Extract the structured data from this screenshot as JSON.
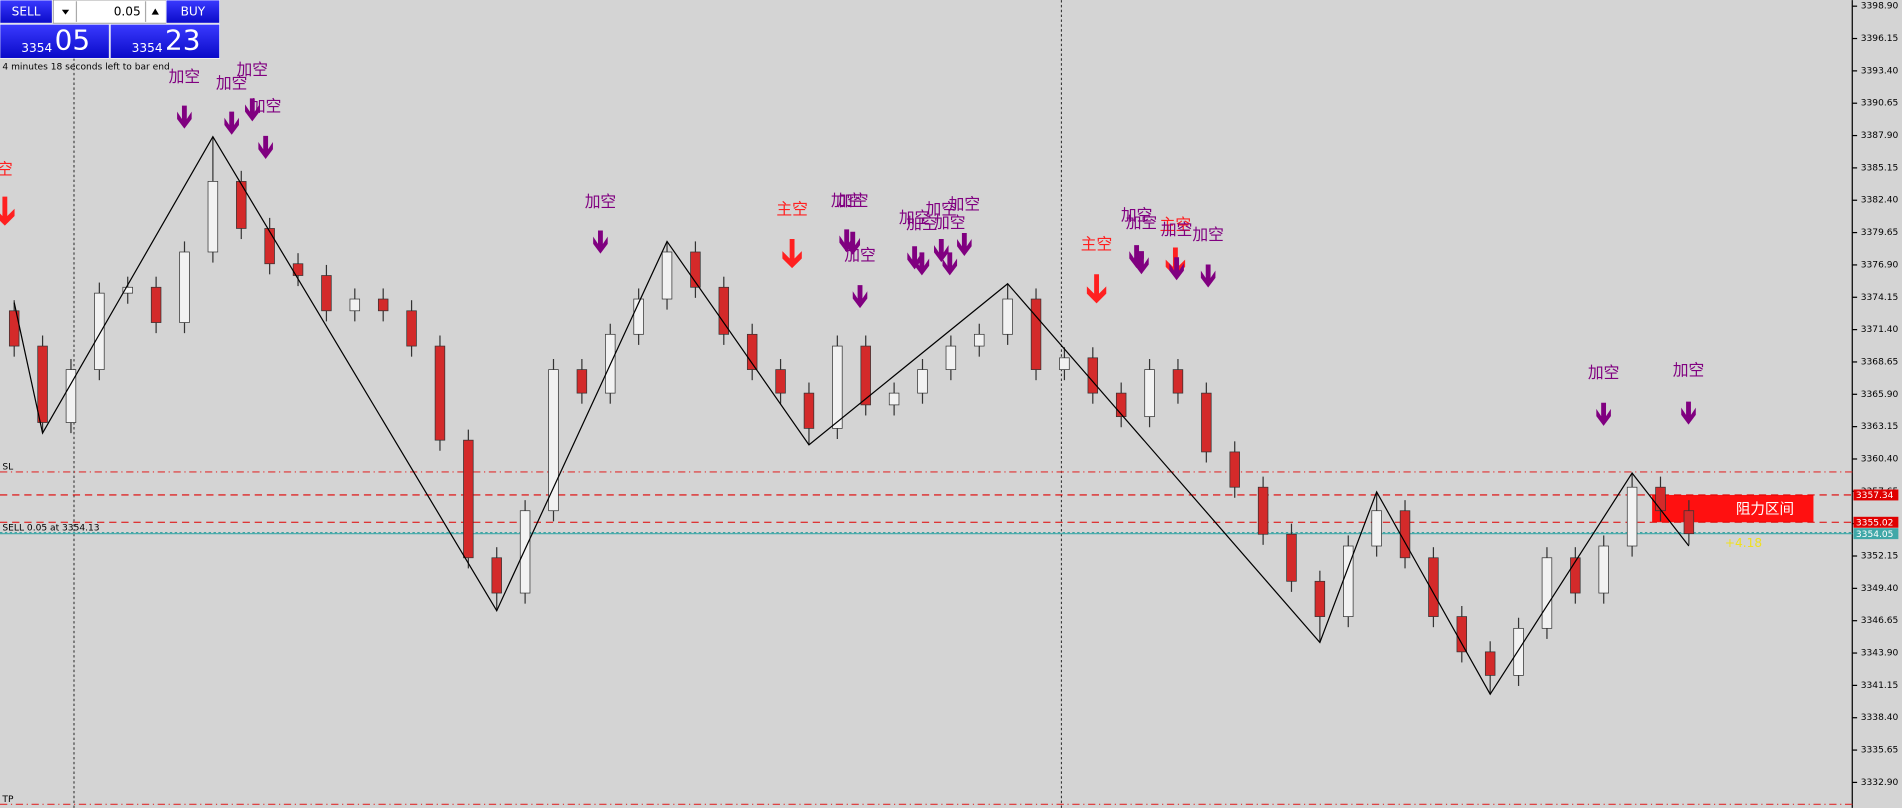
{
  "chart_data": {
    "type": "candlestick",
    "up_color": "#f2f2f2",
    "down_color": "#d42a2a",
    "wick_color": "#333333",
    "open": [
      3373,
      3370,
      3363.5,
      3368,
      3374.5,
      3375,
      3372,
      3378,
      3384,
      3380,
      3377,
      3376,
      3373,
      3374,
      3373,
      3370,
      3362,
      3352,
      3349,
      3356,
      3368,
      3366,
      3371,
      3374,
      3378,
      3375,
      3371,
      3368,
      3366,
      3363,
      3370,
      3365,
      3366,
      3368,
      3370,
      3371,
      3374,
      3368,
      3369,
      3366,
      3364,
      3368,
      3366,
      3361,
      3358,
      3354,
      3350,
      3347,
      3353,
      3356,
      3352,
      3347,
      3344,
      3342,
      3346,
      3352,
      3349,
      3353,
      3358,
      3356
    ],
    "high": [
      3373.9,
      3370.9,
      3368.9,
      3375.4,
      3375.9,
      3375.9,
      3378.9,
      3387.8,
      3384.9,
      3380.9,
      3377.9,
      3376.9,
      3374.9,
      3374.9,
      3373.9,
      3370.9,
      3362.9,
      3352.9,
      3356.9,
      3368.9,
      3368.9,
      3371.9,
      3374.9,
      3378.9,
      3378.9,
      3375.9,
      3371.9,
      3368.9,
      3366.9,
      3370.9,
      3370.9,
      3366.9,
      3368.9,
      3370.9,
      3371.9,
      3375.3,
      3374.9,
      3369.9,
      3369.9,
      3366.9,
      3368.9,
      3368.9,
      3366.9,
      3361.9,
      3358.9,
      3354.9,
      3350.9,
      3353.9,
      3357.6,
      3356.9,
      3352.9,
      3347.9,
      3344.9,
      3346.9,
      3352.9,
      3352.9,
      3353.9,
      3359.2,
      3358.9,
      3356.9
    ],
    "low": [
      3369.1,
      3362.6,
      3362.6,
      3367.1,
      3373.6,
      3371.1,
      3371.1,
      3377.1,
      3379.1,
      3376.1,
      3375.1,
      3372.1,
      3372.1,
      3372.1,
      3369.1,
      3361.1,
      3351.1,
      3347.5,
      3348.1,
      3355.1,
      3365.1,
      3365.1,
      3370.1,
      3373.1,
      3374.1,
      3370.1,
      3367.1,
      3365.1,
      3361.6,
      3362.1,
      3364.1,
      3364.1,
      3365.1,
      3367.1,
      3369.1,
      3370.1,
      3367.1,
      3367.1,
      3365.1,
      3363.1,
      3363.1,
      3365.1,
      3360.1,
      3357.1,
      3353.1,
      3349.1,
      3344.8,
      3346.1,
      3352.1,
      3351.1,
      3346.1,
      3343.1,
      3340.4,
      3341.1,
      3345.1,
      3348.1,
      3348.1,
      3352.1,
      3355.1,
      3353.1
    ],
    "close": [
      3370,
      3363.5,
      3368,
      3374.5,
      3375,
      3372,
      3378,
      3384,
      3380,
      3377,
      3376,
      3373,
      3374,
      3373,
      3370,
      3362,
      3352,
      3349,
      3356,
      3368,
      3366,
      3371,
      3374,
      3378,
      3375,
      3371,
      3368,
      3366,
      3363,
      3370,
      3365,
      3366,
      3368,
      3370,
      3371,
      3374,
      3368,
      3369,
      3366,
      3364,
      3368,
      3366,
      3361,
      3358,
      3354,
      3350,
      3347,
      3353,
      3356,
      3352,
      3347,
      3344,
      3342,
      3346,
      3352,
      3349,
      3353,
      3358,
      3356,
      3354.05
    ],
    "ylim": [
      3330.73,
      3399.42
    ],
    "yticks": [
      {
        "value": 3398.9,
        "label": "3398.90"
      },
      3396.15,
      {
        "value": 3393.4,
        "label": "3393.40"
      },
      3390.65,
      {
        "value": 3387.9,
        "label": "3387.90"
      },
      3385.15,
      {
        "value": 3382.4,
        "label": "3382.40"
      },
      3379.65,
      {
        "value": 3376.9,
        "label": "3376.90"
      },
      3374.15,
      {
        "value": 3371.4,
        "label": "3371.40"
      },
      3368.65,
      {
        "value": 3365.9,
        "label": "3365.90"
      },
      3363.15,
      {
        "value": 3360.4,
        "label": "3360.40"
      },
      3357.65,
      {
        "value": 3354.9,
        "label": "3354.90"
      },
      3352.15,
      {
        "value": 3349.4,
        "label": "3349.40"
      },
      3346.65,
      {
        "value": 3343.9,
        "label": "3343.90"
      },
      3341.15,
      {
        "value": 3338.4,
        "label": "3338.40"
      },
      3335.65,
      {
        "value": 3332.9,
        "label": "3332.90"
      }
    ],
    "zigzag": {
      "color": "#000000",
      "x": [
        0,
        1,
        7,
        17,
        23,
        28,
        35,
        46,
        48,
        52,
        57,
        59
      ],
      "values": [
        3373.7,
        3362.6,
        3387.8,
        3347.5,
        3378.9,
        3361.6,
        3375.3,
        3344.8,
        3357.6,
        3340.4,
        3359.2,
        3353.0
      ]
    },
    "levels": [
      {
        "label": "SL",
        "value": 3359.3,
        "color": "#e03030",
        "style": "dashdot"
      },
      {
        "value": 3357.34,
        "color": "#e00000",
        "style": "dashed",
        "tag": true
      },
      {
        "value": 3355.02,
        "color": "#e00000",
        "style": "dashed",
        "tag": true
      },
      {
        "label": "SELL 0.05 at 3354.13",
        "value": 3354.13,
        "color": "#2a9a9a",
        "style": "dotted"
      },
      {
        "value": 3354.05,
        "color": "#40a8a8",
        "style": "solid",
        "tag": true
      },
      {
        "label": "TP",
        "value": 3331.04,
        "color": "#e03030",
        "style": "dashdot"
      }
    ],
    "zone": {
      "label": "阻力区间",
      "from": 3355.02,
      "to": 3357.34,
      "color": "#ff1010"
    },
    "profit": "+4.18",
    "signals": [
      {
        "label": "空",
        "color": "#ff2020"
      },
      {
        "label": "加空",
        "color": "#800080"
      },
      {
        "label": "加空",
        "color": "#800080"
      },
      {
        "label": "加空",
        "color": "#800080"
      },
      {
        "label": "加空",
        "color": "#800080"
      },
      {
        "label": "加空",
        "color": "#800080"
      },
      {
        "label": "主空",
        "color": "#ff2020"
      },
      {
        "label": "加空",
        "color": "#800080"
      },
      {
        "label": "加空",
        "color": "#800080"
      },
      {
        "label": "加空",
        "color": "#800080"
      },
      {
        "label": "加空",
        "color": "#800080"
      },
      {
        "label": "加空",
        "color": "#800080"
      },
      {
        "label": "加空",
        "color": "#800080"
      },
      {
        "label": "加空",
        "color": "#800080"
      },
      {
        "label": "加空",
        "color": "#800080"
      },
      {
        "label": "主空",
        "color": "#ff2020"
      },
      {
        "label": "加空",
        "color": "#800080"
      },
      {
        "label": "加空",
        "color": "#800080"
      },
      {
        "label": "主空",
        "color": "#ff2020"
      },
      {
        "label": "加空",
        "color": "#800080"
      },
      {
        "label": "加空",
        "color": "#800080"
      },
      {
        "label": "加空",
        "color": "#800080"
      },
      {
        "label": "加空",
        "color": "#800080"
      }
    ]
  },
  "trade_panel": {
    "sell": "SELL",
    "buy": "BUY",
    "lot": "0.05",
    "sell_big": "3354",
    "sell_small": "05",
    "buy_big": "3354",
    "buy_small": "23",
    "timer": "4 minutes 18 seconds left to bar end"
  }
}
